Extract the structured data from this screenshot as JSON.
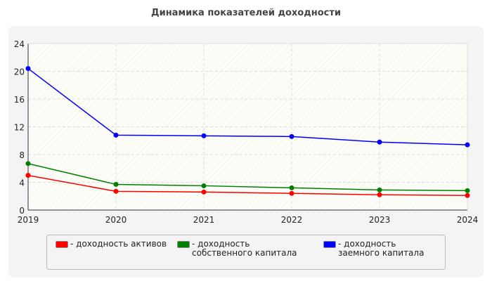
{
  "chart_data": {
    "type": "line",
    "title": "Динамика показателей доходности",
    "x": [
      "2019",
      "2020",
      "2021",
      "2022",
      "2023",
      "2024"
    ],
    "ylim": [
      0,
      24
    ],
    "yticks": [
      0,
      4,
      8,
      12,
      16,
      20,
      24
    ],
    "grid": true,
    "legend_position": "bottom",
    "series": [
      {
        "name": "- доходность активов",
        "color": "#ff0000",
        "values": [
          5.0,
          2.7,
          2.6,
          2.4,
          2.2,
          2.1
        ]
      },
      {
        "name": "- доходность собственного капитала",
        "color": "#008000",
        "values": [
          6.7,
          3.7,
          3.5,
          3.2,
          2.9,
          2.8
        ]
      },
      {
        "name": "- доходность заемного капитала",
        "color": "#0000ff",
        "values": [
          20.4,
          10.8,
          10.7,
          10.6,
          9.8,
          9.4
        ]
      }
    ]
  }
}
